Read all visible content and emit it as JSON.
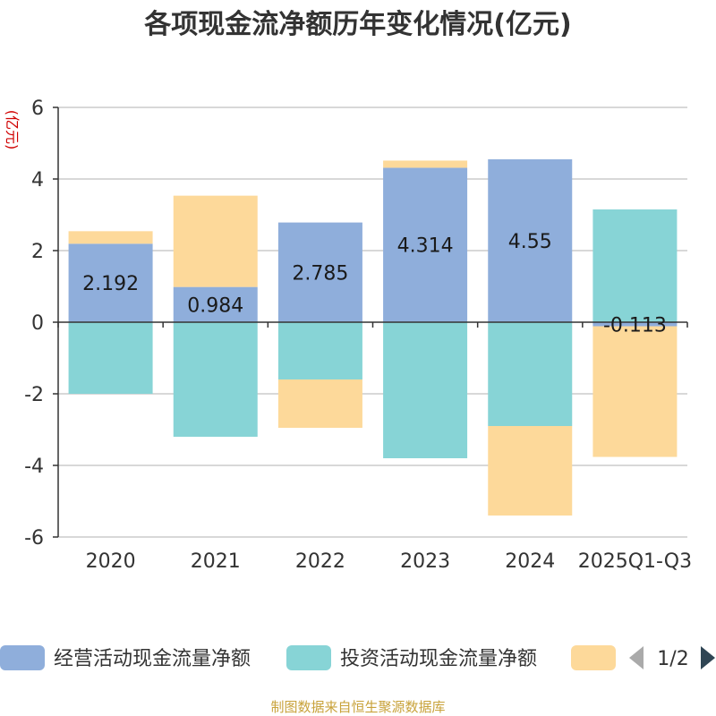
{
  "chart_data": {
    "type": "bar",
    "stacked": true,
    "title": "各项现金流净额历年变化情况(亿元)",
    "ylabel": "(亿元)",
    "categories": [
      "2020",
      "2021",
      "2022",
      "2023",
      "2024",
      "2025Q1-Q3"
    ],
    "ylim": [
      -6,
      6
    ],
    "yticks": [
      6,
      4,
      2,
      0,
      -2,
      -4,
      -6
    ],
    "grid": true,
    "series": [
      {
        "name": "经营活动现金流量净额",
        "color": "#8faedb",
        "values": [
          2.192,
          0.984,
          2.785,
          4.314,
          4.55,
          -0.113
        ],
        "labels": [
          "2.192",
          "0.984",
          "2.785",
          "4.314",
          "4.55",
          "-0.113"
        ]
      },
      {
        "name": "投资活动现金流量净额",
        "color": "#87d4d6",
        "values": [
          -2.0,
          -3.2,
          -1.6,
          -3.8,
          -2.9,
          3.15
        ]
      },
      {
        "name": "",
        "color": "#fdd99a",
        "values": [
          0.35,
          2.55,
          -1.35,
          0.2,
          -2.5,
          -3.65
        ]
      }
    ],
    "legend": {
      "position": "bottom",
      "page": "1/2"
    }
  },
  "footer": "制图数据来自恒生聚源数据库"
}
